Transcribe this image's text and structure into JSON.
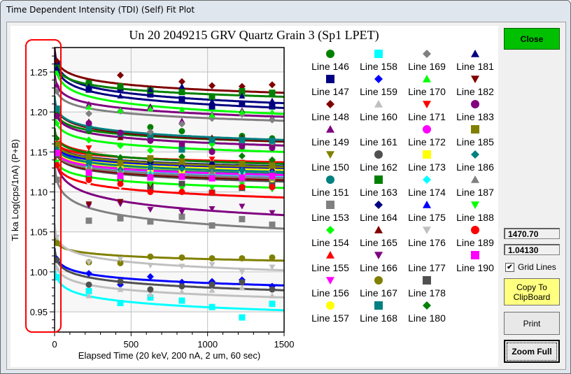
{
  "window": {
    "title": "Time Dependent Intensity (TDI) (Self) Fit Plot"
  },
  "controls": {
    "close_label": "Close",
    "readout_x": "1470.70",
    "readout_y": "1.04130",
    "grid_lines_label": "Grid Lines",
    "grid_lines_checked": true,
    "check_mark": "✔",
    "copy_label": "Copy To ClipBoard",
    "print_label": "Print",
    "zoom_full_label": "Zoom Full"
  },
  "annotation_color": "#ff0000",
  "chart_data": {
    "type": "scatter",
    "title": "Un   20  2049215 GRV Quartz Grain 3 (Sp1 LPET)",
    "xlabel": "Elapsed Time (20 keV, 200 nA, 2 um, 60 sec)",
    "ylabel": "Ti ka Log(cps/1nA) (P+B)",
    "xlim": [
      0,
      1500
    ],
    "ylim": [
      0.925,
      1.28
    ],
    "xticks": [
      "0",
      "500",
      "1000",
      "1500"
    ],
    "yticks": [
      "1.25",
      "1.20",
      "1.15",
      "1.10",
      "1.05",
      "1.00",
      "0.95"
    ],
    "grid": true,
    "legend_position": "right",
    "x": [
      224,
      430,
      626,
      832,
      1029,
      1225,
      1422
    ],
    "series": [
      {
        "name": "Line 146",
        "color": "#008000",
        "marker": "circle",
        "fit": [
          1.21,
          1.163
        ],
        "values": [
          1.176,
          1.172,
          1.181,
          1.176,
          1.166,
          1.17,
          1.167
        ]
      },
      {
        "name": "Line 147",
        "color": "#000080",
        "marker": "square",
        "fit": [
          1.28,
          1.211
        ],
        "values": [
          1.228,
          1.23,
          1.222,
          1.216,
          1.207,
          1.21,
          1.207
        ]
      },
      {
        "name": "Line 148",
        "color": "#800000",
        "marker": "diamond",
        "fit": [
          1.28,
          1.224
        ],
        "values": [
          1.236,
          1.246,
          1.228,
          1.238,
          1.233,
          1.232,
          1.234
        ]
      },
      {
        "name": "Line 149",
        "color": "#800080",
        "marker": "triangle-up",
        "fit": [
          1.25,
          1.194
        ],
        "values": [
          1.21,
          1.203,
          1.207,
          1.189,
          1.197,
          1.202,
          1.193
        ]
      },
      {
        "name": "Line 150",
        "color": "#808000",
        "marker": "triangle-down",
        "fit": [
          1.17,
          1.128
        ],
        "values": [
          1.139,
          1.135,
          1.13,
          1.13,
          1.128,
          1.13,
          1.126
        ]
      },
      {
        "name": "Line 151",
        "color": "#008080",
        "marker": "circle",
        "fit": [
          1.16,
          1.123
        ],
        "values": [
          1.138,
          1.133,
          1.128,
          1.125,
          1.124,
          1.126,
          1.122
        ]
      },
      {
        "name": "Line 153",
        "color": "#808080",
        "marker": "square",
        "fit": [
          1.14,
          1.054
        ],
        "values": [
          1.064,
          1.067,
          1.063,
          1.069,
          1.058,
          1.066,
          1.059
        ]
      },
      {
        "name": "Line 154",
        "color": "#00ff00",
        "marker": "diamond",
        "fit": [
          1.2,
          1.15
        ],
        "values": [
          1.165,
          1.158,
          1.152,
          1.157,
          1.16,
          1.154,
          1.156
        ]
      },
      {
        "name": "Line 155",
        "color": "#ff0000",
        "marker": "triangle-up",
        "fit": [
          1.18,
          1.137
        ],
        "values": [
          1.148,
          1.14,
          1.142,
          1.138,
          1.131,
          1.136,
          1.134
        ]
      },
      {
        "name": "Line 156",
        "color": "#ff00ff",
        "marker": "triangle-down",
        "fit": [
          1.16,
          1.121
        ],
        "values": [
          1.126,
          1.127,
          1.122,
          1.124,
          1.118,
          1.12,
          1.119
        ]
      },
      {
        "name": "Line 157",
        "color": "#ffff00",
        "marker": "circle",
        "fit": [
          1.16,
          1.125
        ],
        "values": [
          1.12,
          1.125,
          1.126,
          1.121,
          1.118,
          1.119,
          1.116
        ]
      },
      {
        "name": "Line 158",
        "color": "#00ffff",
        "marker": "square",
        "fit": [
          1.01,
          0.952
        ],
        "values": [
          0.976,
          0.961,
          0.968,
          0.964,
          0.956,
          0.943,
          0.96
        ]
      },
      {
        "name": "Line 159",
        "color": "#0000ff",
        "marker": "diamond",
        "fit": [
          1.03,
          0.983
        ],
        "values": [
          0.998,
          0.984,
          0.994,
          0.987,
          0.988,
          0.99,
          0.982
        ]
      },
      {
        "name": "Line 160",
        "color": "#c0c0c0",
        "marker": "triangle-up",
        "fit": [
          1.02,
          0.968
        ],
        "values": [
          0.97,
          0.978,
          0.972,
          0.975,
          0.977,
          0.98,
          0.97
        ]
      },
      {
        "name": "Line 161",
        "color": "#ffffff",
        "marker": "triangle-down",
        "fit": [
          1.17,
          1.14
        ],
        "values": [
          1.145,
          1.143,
          1.142,
          1.141,
          1.14,
          1.141,
          1.14
        ]
      },
      {
        "name": "Line 162",
        "color": "#505050",
        "marker": "circle",
        "fit": [
          1.03,
          0.977
        ],
        "values": [
          0.984,
          0.988,
          0.978,
          0.982,
          0.984,
          0.987,
          0.978
        ]
      },
      {
        "name": "Line 163",
        "color": "#008000",
        "marker": "square",
        "fit": [
          1.27,
          1.219
        ],
        "values": [
          1.236,
          1.232,
          1.227,
          1.225,
          1.219,
          1.226,
          1.224
        ]
      },
      {
        "name": "Line 164",
        "color": "#000080",
        "marker": "diamond",
        "fit": [
          1.17,
          1.132
        ],
        "values": [
          1.146,
          1.138,
          1.137,
          1.131,
          1.135,
          1.128,
          1.133
        ]
      },
      {
        "name": "Line 165",
        "color": "#800000",
        "marker": "triangle-up",
        "fit": [
          1.22,
          1.163
        ],
        "values": [
          1.188,
          1.168,
          1.167,
          1.16,
          1.168,
          1.168,
          1.165
        ]
      },
      {
        "name": "Line 166",
        "color": "#800080",
        "marker": "triangle-down",
        "fit": [
          1.16,
          1.071
        ],
        "values": [
          1.083,
          1.085,
          1.078,
          1.075,
          1.079,
          1.082,
          1.074
        ]
      },
      {
        "name": "Line 167",
        "color": "#808000",
        "marker": "circle",
        "fit": [
          1.045,
          1.014
        ],
        "values": [
          1.012,
          1.011,
          1.019,
          1.018,
          1.017,
          1.017,
          1.018
        ]
      },
      {
        "name": "Line 168",
        "color": "#008080",
        "marker": "square",
        "fit": [
          1.22,
          1.165
        ],
        "values": [
          1.18,
          1.173,
          1.17,
          1.153,
          1.165,
          1.165,
          1.164
        ]
      },
      {
        "name": "Line 169",
        "color": "#808080",
        "marker": "diamond",
        "fit": [
          1.24,
          1.189
        ],
        "values": [
          1.198,
          1.201,
          1.175,
          1.185,
          1.192,
          1.197,
          1.19
        ]
      },
      {
        "name": "Line 170",
        "color": "#00ff00",
        "marker": "triangle-up",
        "fit": [
          1.27,
          1.1975
        ],
        "values": [
          1.206,
          1.202,
          1.204,
          1.203,
          1.196,
          1.2,
          1.2
        ]
      },
      {
        "name": "Line 171",
        "color": "#ff0000",
        "marker": "triangle-down",
        "fit": [
          1.17,
          1.137
        ],
        "values": [
          1.155,
          1.133,
          1.14,
          1.137,
          1.141,
          1.137,
          1.136
        ]
      },
      {
        "name": "Line 172",
        "color": "#ff00ff",
        "marker": "circle",
        "fit": [
          1.16,
          1.118
        ],
        "values": [
          1.128,
          1.122,
          1.12,
          1.122,
          1.119,
          1.116,
          1.118
        ]
      },
      {
        "name": "Line 173",
        "color": "#ffff00",
        "marker": "square",
        "fit": [
          1.165,
          1.127
        ],
        "values": [
          1.128,
          1.13,
          1.129,
          1.126,
          1.125,
          1.122,
          1.127
        ]
      },
      {
        "name": "Line 174",
        "color": "#00ffff",
        "marker": "diamond",
        "fit": [
          1.16,
          1.12
        ],
        "values": [
          1.132,
          1.126,
          1.123,
          1.12,
          1.122,
          1.124,
          1.119
        ]
      },
      {
        "name": "Line 175",
        "color": "#0000ff",
        "marker": "triangle-up",
        "fit": [
          1.165,
          1.13
        ],
        "values": [
          1.143,
          1.136,
          1.131,
          1.132,
          1.128,
          1.131,
          1.129
        ]
      },
      {
        "name": "Line 176",
        "color": "#c0c0c0",
        "marker": "triangle-down",
        "fit": [
          1.06,
          1.002
        ],
        "values": [
          1.012,
          1.016,
          1.008,
          1.007,
          1.009,
          1.0,
          1.006
        ]
      },
      {
        "name": "Line 177",
        "color": "#ffffff",
        "marker": "triangle-down",
        "fit": [
          1.15,
          1.1
        ],
        "values": [
          1.11,
          1.106,
          1.104,
          1.103,
          1.101,
          1.1,
          1.1
        ]
      },
      {
        "name": "Line 178",
        "color": "#505050",
        "marker": "square",
        "fit": [
          1.16,
          1.113
        ],
        "values": [
          1.12,
          1.117,
          1.106,
          1.11,
          1.099,
          1.105,
          1.108
        ]
      },
      {
        "name": "Line 180",
        "color": "#008000",
        "marker": "diamond",
        "fit": [
          1.18,
          1.135
        ],
        "values": [
          1.148,
          1.143,
          1.14,
          1.144,
          1.152,
          1.145,
          1.14
        ]
      },
      {
        "name": "Line 181",
        "color": "#000080",
        "marker": "triangle-up",
        "fit": [
          1.275,
          1.205
        ],
        "values": [
          1.232,
          1.22,
          1.228,
          1.232,
          1.213,
          1.22,
          1.214
        ]
      },
      {
        "name": "Line 182",
        "color": "#800000",
        "marker": "triangle-down",
        "fit": [
          1.16,
          1.115
        ],
        "values": [
          1.085,
          1.088,
          1.108,
          1.12,
          1.118,
          1.125,
          1.13
        ]
      },
      {
        "name": "Line 183",
        "color": "#800080",
        "marker": "circle",
        "fit": [
          1.21,
          1.158
        ],
        "values": [
          1.186,
          1.174,
          1.164,
          1.16,
          1.15,
          1.157,
          1.155
        ]
      },
      {
        "name": "Line 185",
        "color": "#808000",
        "marker": "square",
        "fit": [
          1.17,
          1.131
        ],
        "values": [
          1.144,
          1.136,
          1.142,
          1.138,
          1.13,
          1.135,
          1.133
        ]
      },
      {
        "name": "Line 186",
        "color": "#008080",
        "marker": "diamond",
        "fit": [
          1.165,
          1.125
        ],
        "values": [
          1.134,
          1.128,
          1.131,
          1.129,
          1.126,
          1.127,
          1.124
        ]
      },
      {
        "name": "Line 187",
        "color": "#808080",
        "marker": "triangle-up",
        "fit": [
          1.16,
          1.117
        ],
        "values": [
          1.131,
          1.126,
          1.122,
          1.12,
          1.125,
          1.116,
          1.117
        ]
      },
      {
        "name": "Line 188",
        "color": "#00ff00",
        "marker": "triangle-down",
        "fit": [
          1.15,
          1.105
        ],
        "values": [
          1.119,
          1.115,
          1.11,
          1.104,
          1.105,
          1.109,
          1.103
        ]
      },
      {
        "name": "Line 189",
        "color": "#ff0000",
        "marker": "circle",
        "fit": [
          1.15,
          1.093
        ],
        "values": [
          1.115,
          1.11,
          1.1,
          1.1,
          1.099,
          1.106,
          1.106
        ]
      },
      {
        "name": "Line 190",
        "color": "#ff00ff",
        "marker": "square",
        "fit": [
          1.16,
          1.121
        ],
        "values": [
          1.124,
          1.12,
          1.118,
          1.119,
          1.117,
          1.118,
          1.12
        ]
      }
    ]
  }
}
